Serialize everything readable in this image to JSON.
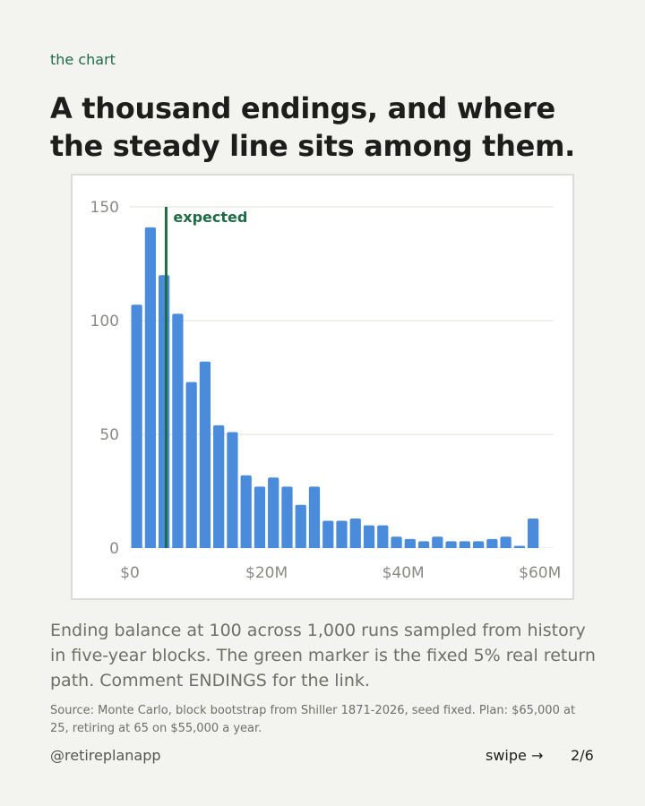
{
  "kicker": "the chart",
  "headline": "A thousand endings, and where the steady line sits among them.",
  "caption": "Ending balance at 100 across 1,000 runs sampled from history in five-year blocks. The green marker is the fixed 5% real return path. Comment ENDINGS for the link.",
  "source": "Source: Monte Carlo, block bootstrap from Shiller 1871-2026, seed fixed. Plan: $65,000 at 25, retiring at 65 on $55,000 a year.",
  "footer": {
    "handle": "@retireplanapp",
    "swipe": "swipe →",
    "page": "2/6"
  },
  "colors": {
    "bar": "#4a8bdc",
    "marker": "#1f6b45",
    "grid": "#e6e6e2",
    "axis": "#8a8a85"
  },
  "chart_data": {
    "type": "bar",
    "title": "",
    "xlabel": "",
    "ylabel": "",
    "x_unit": "M dollars",
    "bin_width": 2,
    "xlim": [
      0,
      62
    ],
    "ylim": [
      0,
      150
    ],
    "grid": true,
    "y_ticks": [
      0,
      50,
      100,
      150
    ],
    "x_ticks": [
      {
        "value": 0,
        "label": "$0"
      },
      {
        "value": 20,
        "label": "$20M"
      },
      {
        "value": 40,
        "label": "$40M"
      },
      {
        "value": 60,
        "label": "$60M"
      }
    ],
    "bin_starts": [
      0,
      2,
      4,
      6,
      8,
      10,
      12,
      14,
      16,
      18,
      20,
      22,
      24,
      26,
      28,
      30,
      32,
      34,
      36,
      38,
      40,
      42,
      44,
      46,
      48,
      50,
      52,
      54,
      56,
      58
    ],
    "values": [
      107,
      141,
      120,
      103,
      73,
      82,
      54,
      51,
      32,
      27,
      31,
      27,
      19,
      27,
      12,
      12,
      13,
      10,
      10,
      5,
      4,
      3,
      5,
      3,
      3,
      3,
      4,
      5,
      1,
      13
    ],
    "marker": {
      "label": "expected",
      "x": 5.3
    }
  }
}
